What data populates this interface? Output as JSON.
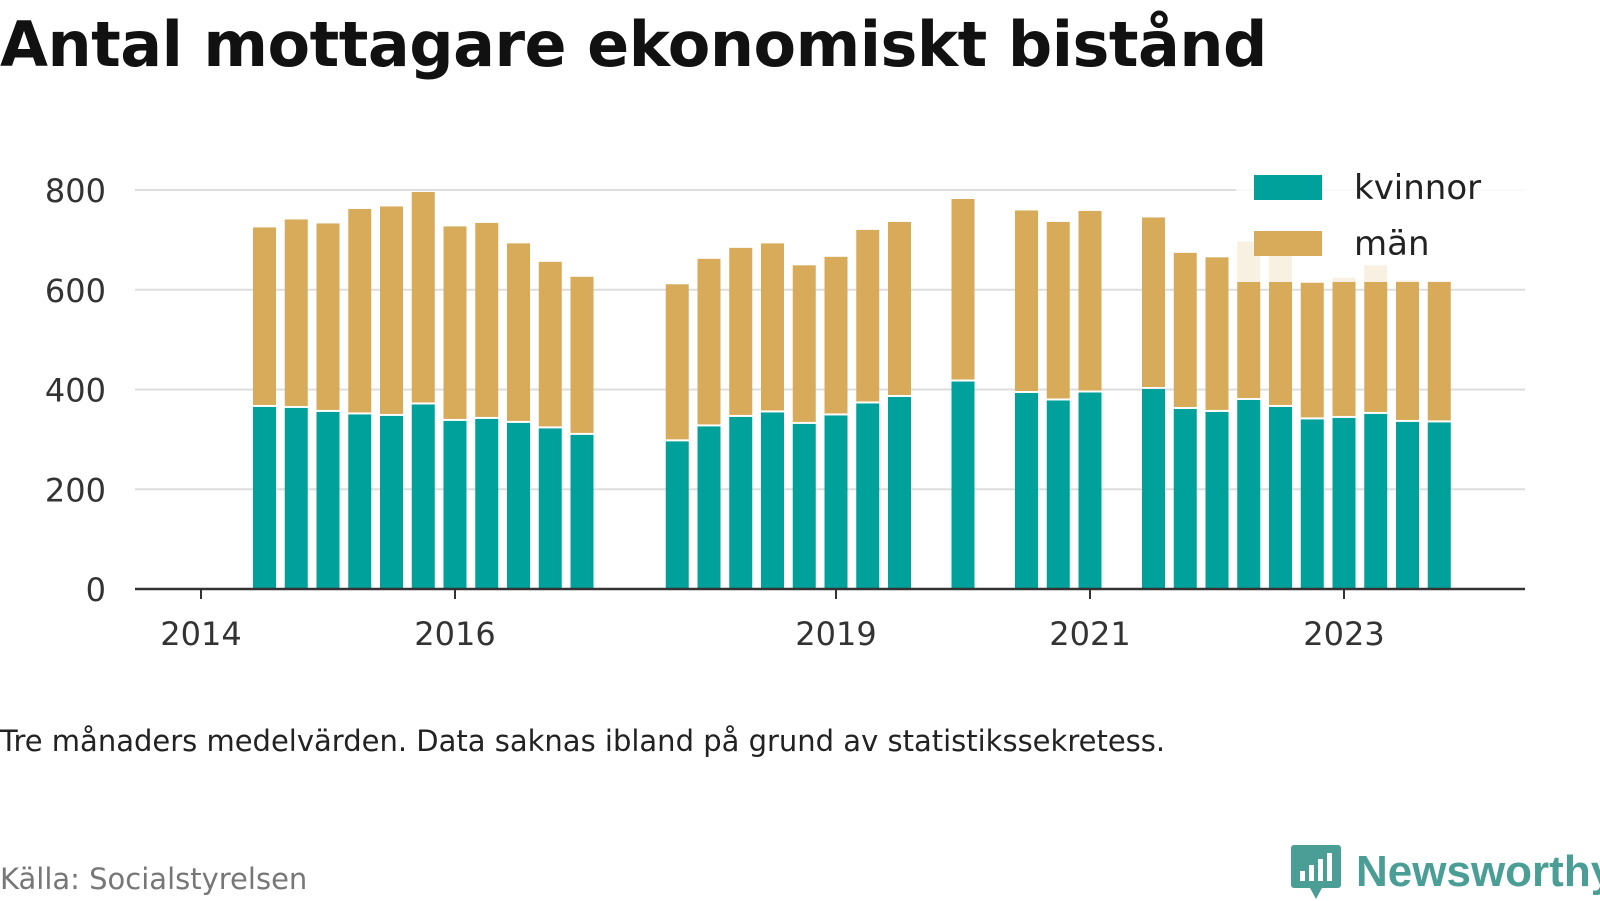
{
  "title": "Antal mottagare ekonomiskt bistånd",
  "note": "Tre månaders medelvärden. Data saknas ibland på grund av statistikssekretess.",
  "source": "Källa: Socialstyrelsen",
  "brand": {
    "name": "Newsworthy",
    "icon": "newsworthy-logo-icon",
    "color": "#4a9e95"
  },
  "colors": {
    "kvinnor": "#00a19a",
    "man": "#d8ab5b",
    "grid": "#dddddd",
    "axis": "#333333"
  },
  "chart_data": {
    "type": "bar",
    "stacked": true,
    "title": "Antal mottagare ekonomiskt bistånd",
    "xlabel": "",
    "ylabel": "",
    "ylim": [
      0,
      800
    ],
    "yticks": [
      0,
      200,
      400,
      600,
      800
    ],
    "xlim": [
      2014.0,
      2019.5
    ],
    "xticks": [
      {
        "value": 2014.0,
        "label": "2014"
      },
      {
        "value": 2015.0,
        "label": "2016"
      },
      {
        "value": 2016.5,
        "label": "2019"
      },
      {
        "value": 2017.5,
        "label": "2021"
      },
      {
        "value": 2018.5,
        "label": "2023"
      }
    ],
    "grid": true,
    "legend": "top-right",
    "series": [
      {
        "name": "kvinnor",
        "color": "#00a19a"
      },
      {
        "name": "män",
        "color": "#d8ab5b"
      }
    ],
    "points": [
      {
        "t": 2014.25,
        "kvinnor": 365,
        "man": 360
      },
      {
        "t": 2014.375,
        "kvinnor": 363,
        "man": 378
      },
      {
        "t": 2014.5,
        "kvinnor": 355,
        "man": 378
      },
      {
        "t": 2014.625,
        "kvinnor": 350,
        "man": 412
      },
      {
        "t": 2014.75,
        "kvinnor": 347,
        "man": 420
      },
      {
        "t": 2014.875,
        "kvinnor": 370,
        "man": 426
      },
      {
        "t": 2015.0,
        "kvinnor": 337,
        "man": 390
      },
      {
        "t": 2015.125,
        "kvinnor": 341,
        "man": 393
      },
      {
        "t": 2015.25,
        "kvinnor": 333,
        "man": 360
      },
      {
        "t": 2015.375,
        "kvinnor": 322,
        "man": 334
      },
      {
        "t": 2015.5,
        "kvinnor": 309,
        "man": 317
      },
      {
        "t": 2015.875,
        "kvinnor": 296,
        "man": 315
      },
      {
        "t": 2016.0,
        "kvinnor": 326,
        "man": 336
      },
      {
        "t": 2016.125,
        "kvinnor": 345,
        "man": 339
      },
      {
        "t": 2016.25,
        "kvinnor": 354,
        "man": 339
      },
      {
        "t": 2016.375,
        "kvinnor": 331,
        "man": 318
      },
      {
        "t": 2016.5,
        "kvinnor": 348,
        "man": 318
      },
      {
        "t": 2016.625,
        "kvinnor": 372,
        "man": 348
      },
      {
        "t": 2016.75,
        "kvinnor": 385,
        "man": 351
      },
      {
        "t": 2017.0,
        "kvinnor": 416,
        "man": 366
      },
      {
        "t": 2017.25,
        "kvinnor": 393,
        "man": 366
      },
      {
        "t": 2017.375,
        "kvinnor": 378,
        "man": 358
      },
      {
        "t": 2017.5,
        "kvinnor": 394,
        "man": 364
      },
      {
        "t": 2017.75,
        "kvinnor": 401,
        "man": 344
      },
      {
        "t": 2017.875,
        "kvinnor": 361,
        "man": 313
      },
      {
        "t": 2018.0,
        "kvinnor": 355,
        "man": 310
      },
      {
        "t": 2018.125,
        "kvinnor": 379,
        "man": 318
      },
      {
        "t": 2018.25,
        "kvinnor": 365,
        "man": 325
      },
      {
        "t": 2018.375,
        "kvinnor": 340,
        "man": 274
      },
      {
        "t": 2018.5,
        "kvinnor": 343,
        "man": 281
      },
      {
        "t": 2018.625,
        "kvinnor": 351,
        "man": 298
      },
      {
        "t": 2018.75,
        "kvinnor": 335,
        "man": 284
      },
      {
        "t": 2018.875,
        "kvinnor": 334,
        "man": 283
      }
    ]
  }
}
